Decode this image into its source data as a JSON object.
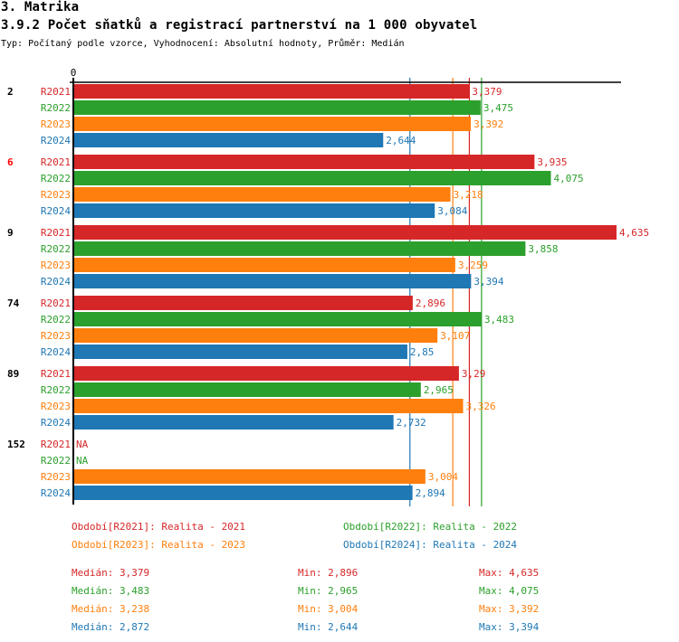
{
  "header": {
    "section": "3. Matrika",
    "title": "3.9.2 Počet sňatků a registrací partnerství na 1 000 obyvatel",
    "subtitle": "Typ: Počítaný podle vzorce, Vyhodnocení: Absolutní hodnoty, Průměr: Medián"
  },
  "chart_data": {
    "type": "bar",
    "orientation": "horizontal",
    "title": "3.9.2 Počet sňatků a registrací partnerství na 1 000 obyvatel",
    "axis_tick_label": "0",
    "xlim": [
      0,
      4.635
    ],
    "categories": [
      "2",
      "6",
      "9",
      "74",
      "89",
      "152"
    ],
    "highlighted_category": "6",
    "series": [
      {
        "name": "R2021",
        "color": "#d62728",
        "values": [
          3.379,
          3.935,
          4.635,
          2.896,
          3.29,
          null
        ],
        "labels": [
          "3,379",
          "3,935",
          "4,635",
          "2,896",
          "3,29",
          "NA"
        ],
        "median": 3.379
      },
      {
        "name": "R2022",
        "color": "#2ca02c",
        "values": [
          3.475,
          4.075,
          3.858,
          3.483,
          2.965,
          null
        ],
        "labels": [
          "3,475",
          "4,075",
          "3,858",
          "3,483",
          "2,965",
          "NA"
        ],
        "median": 3.483
      },
      {
        "name": "R2023",
        "color": "#ff7f0e",
        "values": [
          3.392,
          3.218,
          3.259,
          3.107,
          3.326,
          3.004
        ],
        "labels": [
          "3,392",
          "3,218",
          "3,259",
          "3,107",
          "3,326",
          "3,004"
        ],
        "median": 3.238
      },
      {
        "name": "R2024",
        "color": "#1f77b4",
        "values": [
          2.644,
          3.084,
          3.394,
          2.85,
          2.732,
          2.894
        ],
        "labels": [
          "2,644",
          "3,084",
          "3,394",
          "2,85",
          "2,732",
          "2,894"
        ],
        "median": 2.872
      }
    ],
    "reference_lines": "median per series"
  },
  "legend": [
    {
      "text": "Období[R2021]: Realita - 2021",
      "color": "#d62728"
    },
    {
      "text": "Období[R2022]: Realita - 2022",
      "color": "#2ca02c"
    },
    {
      "text": "Období[R2023]: Realita - 2023",
      "color": "#ff7f0e"
    },
    {
      "text": "Období[R2024]: Realita - 2024",
      "color": "#1f77b4"
    }
  ],
  "stats": [
    {
      "median": "Medián: 3,379",
      "min": "Min: 2,896",
      "max": "Max: 4,635",
      "color": "#d62728"
    },
    {
      "median": "Medián: 3,483",
      "min": "Min: 2,965",
      "max": "Max: 4,075",
      "color": "#2ca02c"
    },
    {
      "median": "Medián: 3,238",
      "min": "Min: 3,004",
      "max": "Max: 3,392",
      "color": "#ff7f0e"
    },
    {
      "median": "Medián: 2,872",
      "min": "Min: 2,644",
      "max": "Max: 3,394",
      "color": "#1f77b4"
    }
  ]
}
